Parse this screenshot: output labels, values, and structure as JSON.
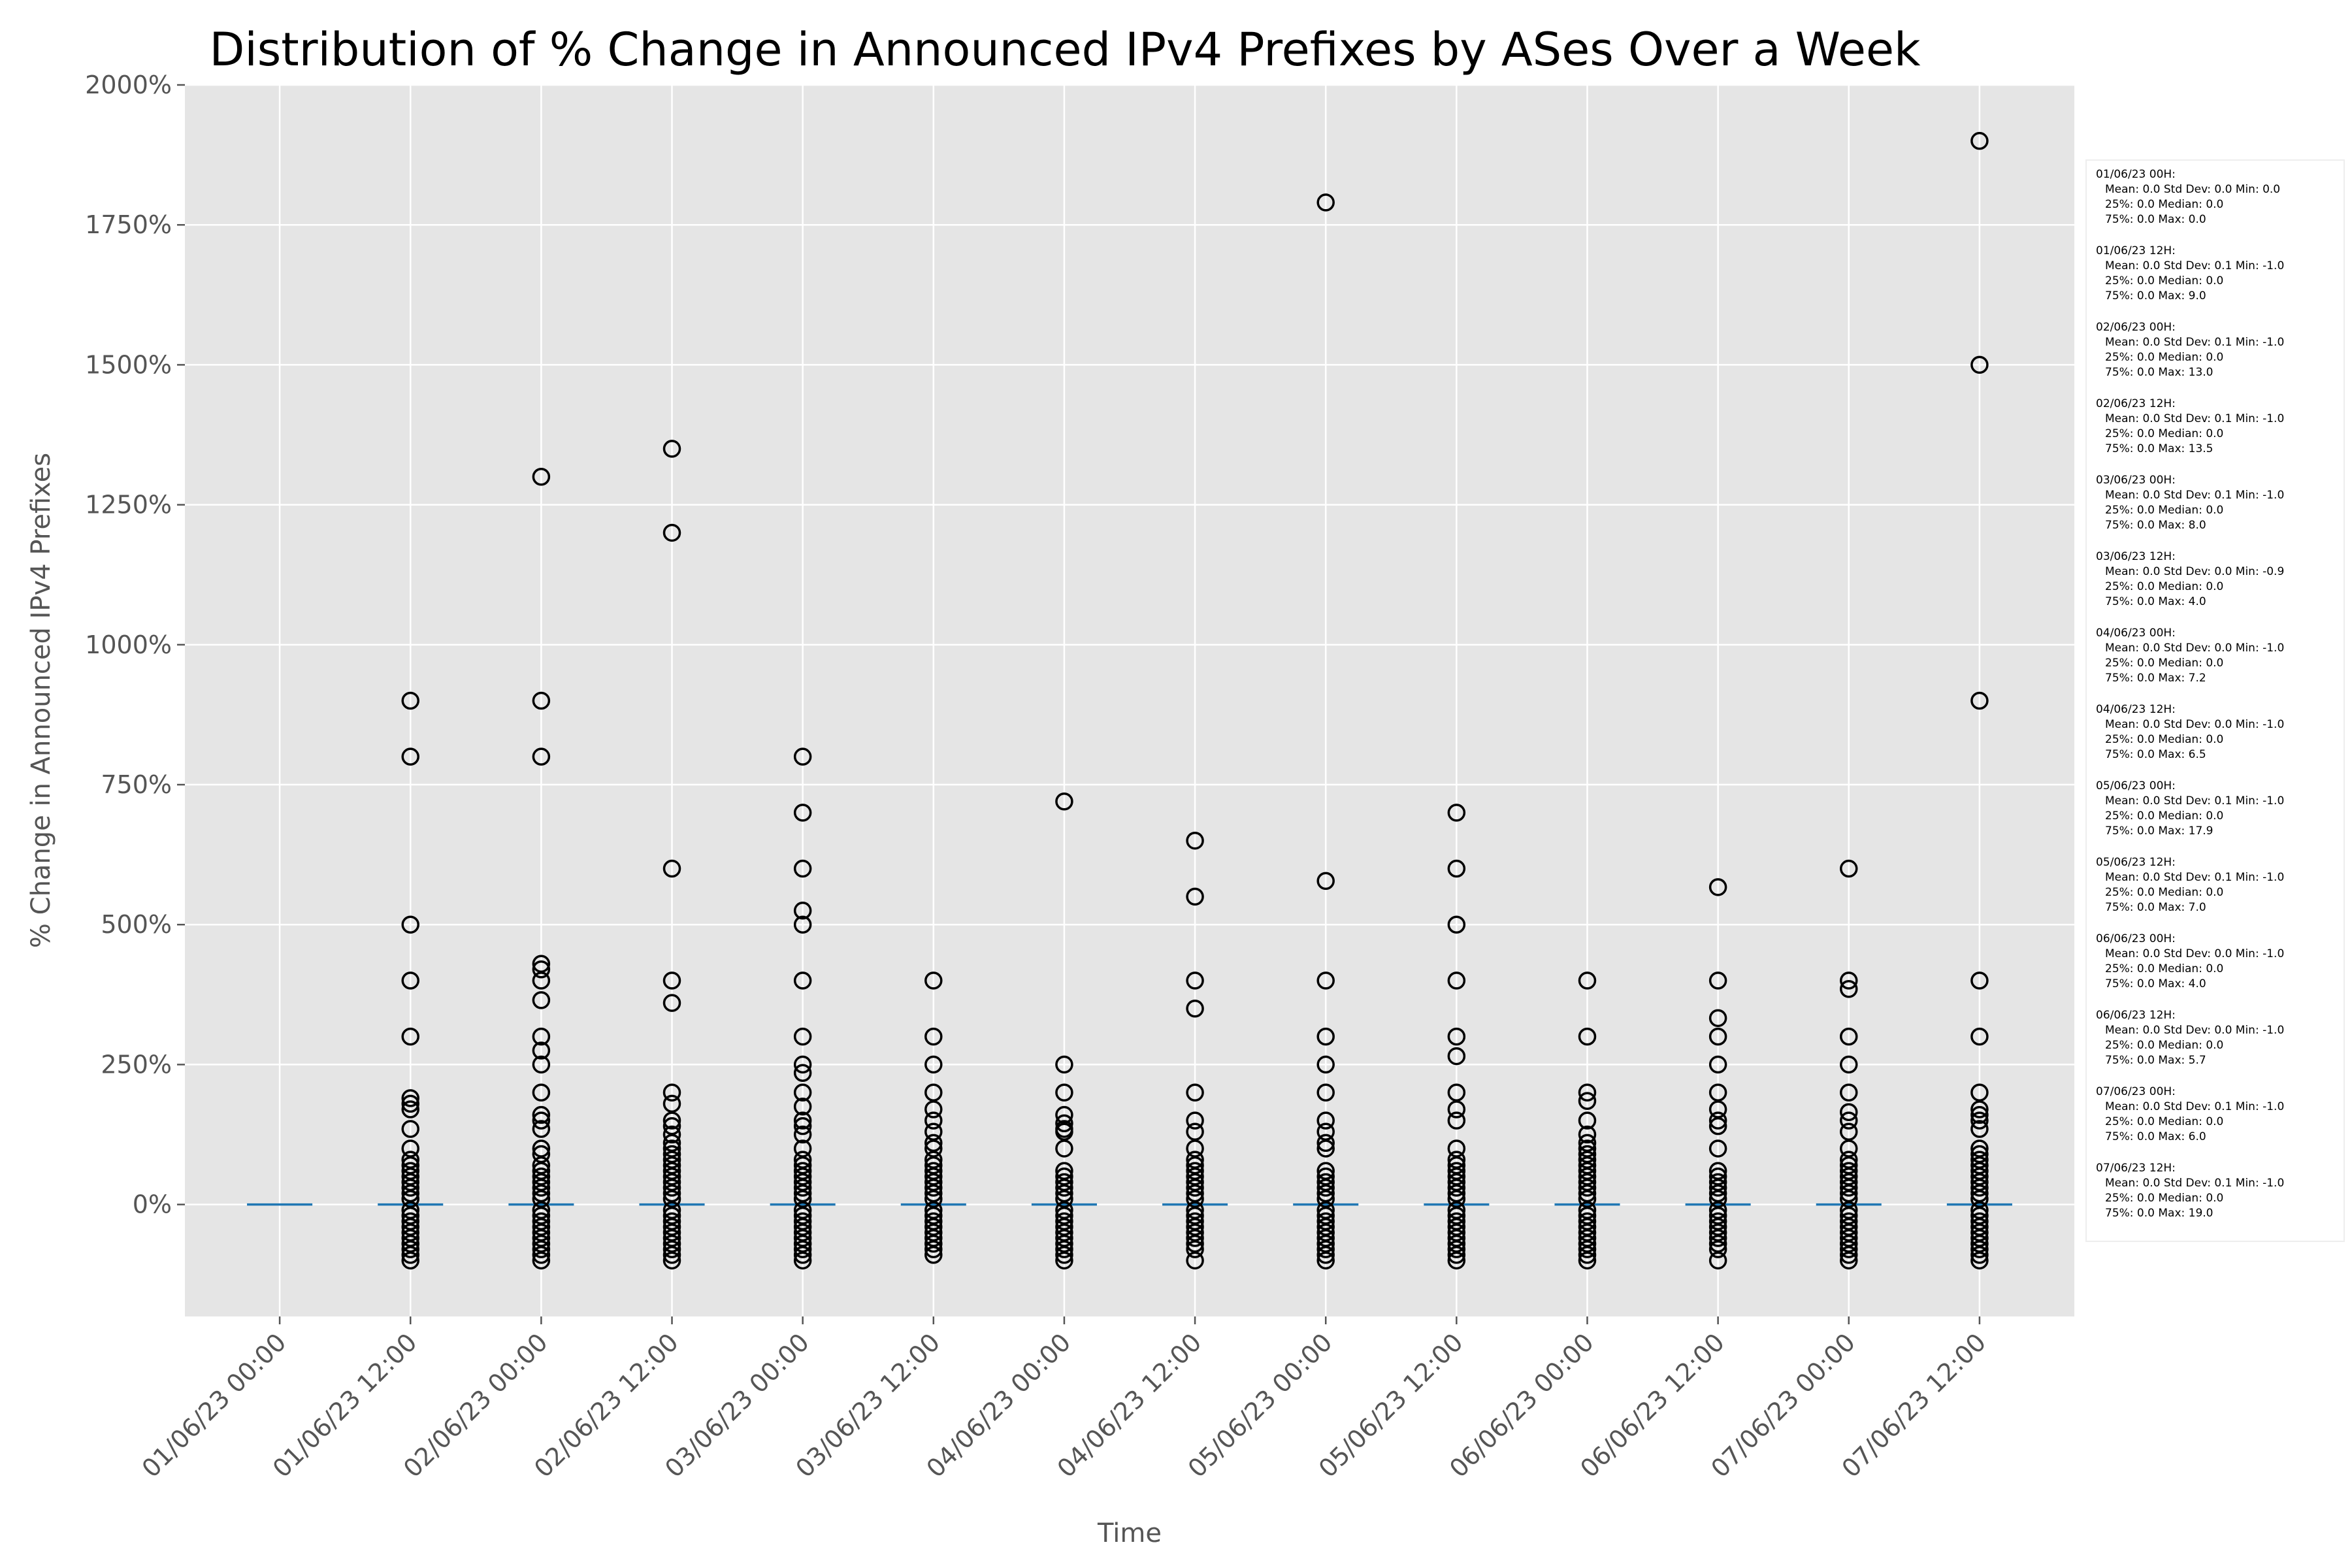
{
  "chart_data": {
    "type": "box",
    "title": "Distribution of % Change in Announced IPv4 Prefixes by ASes Over a Week",
    "xlabel": "Time",
    "ylabel": "% Change in Announced IPv4 Prefixes",
    "ylim": [
      -200,
      2000
    ],
    "y_ticks": [
      0,
      250,
      500,
      750,
      1000,
      1250,
      1500,
      1750,
      2000
    ],
    "y_tick_labels": [
      "0%",
      "250%",
      "500%",
      "750%",
      "1000%",
      "1250%",
      "1500%",
      "1750%",
      "2000%"
    ],
    "grid": true,
    "legend_position": "right",
    "colors": {
      "plot_bg": "#E5E5E5",
      "grid": "#FFFFFF",
      "median": "#1F77B4",
      "outlier": "#000000"
    },
    "categories": [
      "01/06/23 00:00",
      "01/06/23 12:00",
      "02/06/23 00:00",
      "02/06/23 12:00",
      "03/06/23 00:00",
      "03/06/23 12:00",
      "04/06/23 00:00",
      "04/06/23 12:00",
      "05/06/23 00:00",
      "05/06/23 12:00",
      "06/06/23 00:00",
      "06/06/23 12:00",
      "07/06/23 00:00",
      "07/06/23 12:00"
    ],
    "boxes": [
      {
        "q1": 0,
        "median": 0,
        "q3": 0,
        "outliers": []
      },
      {
        "q1": 0,
        "median": 0,
        "q3": 0,
        "outliers": [
          900,
          800,
          500,
          400,
          300,
          190,
          180,
          170,
          135,
          100,
          80,
          70,
          60,
          50,
          40,
          30,
          20,
          10,
          -10,
          -20,
          -30,
          -40,
          -50,
          -60,
          -70,
          -80,
          -90,
          -100
        ]
      },
      {
        "q1": 0,
        "median": 0,
        "q3": 0,
        "outliers": [
          1300,
          900,
          800,
          430,
          420,
          400,
          365,
          300,
          275,
          250,
          200,
          160,
          150,
          135,
          100,
          90,
          70,
          60,
          50,
          40,
          30,
          20,
          10,
          -10,
          -20,
          -30,
          -40,
          -50,
          -60,
          -70,
          -80,
          -90,
          -100
        ]
      },
      {
        "q1": 0,
        "median": 0,
        "q3": 0,
        "outliers": [
          1350,
          1200,
          600,
          400,
          360,
          200,
          180,
          150,
          140,
          125,
          110,
          100,
          90,
          80,
          70,
          60,
          50,
          40,
          30,
          20,
          10,
          -10,
          -20,
          -30,
          -40,
          -50,
          -60,
          -70,
          -80,
          -90,
          -100
        ]
      },
      {
        "q1": 0,
        "median": 0,
        "q3": 0,
        "outliers": [
          800,
          700,
          600,
          525,
          500,
          400,
          300,
          250,
          235,
          200,
          175,
          150,
          140,
          125,
          100,
          80,
          70,
          60,
          50,
          40,
          30,
          20,
          10,
          -10,
          -20,
          -30,
          -40,
          -50,
          -60,
          -70,
          -80,
          -90,
          -100
        ]
      },
      {
        "q1": 0,
        "median": 0,
        "q3": 0,
        "outliers": [
          400,
          300,
          250,
          200,
          170,
          150,
          130,
          110,
          100,
          80,
          70,
          60,
          50,
          40,
          30,
          20,
          10,
          -10,
          -20,
          -30,
          -40,
          -50,
          -60,
          -70,
          -80,
          -90
        ]
      },
      {
        "q1": 0,
        "median": 0,
        "q3": 0,
        "outliers": [
          720,
          250,
          200,
          160,
          145,
          135,
          130,
          100,
          60,
          50,
          40,
          30,
          20,
          10,
          -10,
          -20,
          -30,
          -40,
          -50,
          -60,
          -70,
          -80,
          -90,
          -100
        ]
      },
      {
        "q1": 0,
        "median": 0,
        "q3": 0,
        "outliers": [
          650,
          550,
          400,
          350,
          200,
          150,
          130,
          100,
          80,
          70,
          60,
          50,
          40,
          30,
          20,
          10,
          -10,
          -20,
          -30,
          -40,
          -50,
          -60,
          -70,
          -80,
          -100
        ]
      },
      {
        "q1": 0,
        "median": 0,
        "q3": 0,
        "outliers": [
          1790,
          578,
          400,
          300,
          250,
          200,
          150,
          130,
          110,
          100,
          60,
          50,
          40,
          30,
          20,
          10,
          -10,
          -20,
          -30,
          -40,
          -50,
          -60,
          -70,
          -80,
          -90,
          -100
        ]
      },
      {
        "q1": 0,
        "median": 0,
        "q3": 0,
        "outliers": [
          700,
          600,
          500,
          400,
          300,
          265,
          200,
          170,
          150,
          100,
          80,
          70,
          60,
          50,
          40,
          30,
          20,
          10,
          -10,
          -20,
          -30,
          -40,
          -50,
          -60,
          -70,
          -80,
          -90,
          -100
        ]
      },
      {
        "q1": 0,
        "median": 0,
        "q3": 0,
        "outliers": [
          400,
          300,
          200,
          185,
          150,
          125,
          110,
          100,
          90,
          80,
          70,
          60,
          50,
          40,
          30,
          20,
          10,
          -10,
          -20,
          -30,
          -40,
          -50,
          -60,
          -70,
          -80,
          -90,
          -100
        ]
      },
      {
        "q1": 0,
        "median": 0,
        "q3": 0,
        "outliers": [
          567,
          400,
          333,
          300,
          250,
          200,
          170,
          150,
          140,
          100,
          60,
          50,
          40,
          30,
          20,
          10,
          -10,
          -20,
          -30,
          -40,
          -50,
          -60,
          -70,
          -80,
          -100
        ]
      },
      {
        "q1": 0,
        "median": 0,
        "q3": 0,
        "outliers": [
          600,
          400,
          385,
          300,
          250,
          200,
          165,
          150,
          130,
          100,
          80,
          70,
          60,
          50,
          40,
          30,
          20,
          10,
          -10,
          -20,
          -30,
          -40,
          -50,
          -60,
          -70,
          -80,
          -90,
          -100
        ]
      },
      {
        "q1": 0,
        "median": 0,
        "q3": 0,
        "outliers": [
          1900,
          1500,
          900,
          400,
          300,
          200,
          170,
          160,
          150,
          135,
          100,
          90,
          80,
          70,
          60,
          50,
          40,
          30,
          20,
          10,
          -10,
          -20,
          -30,
          -40,
          -50,
          -60,
          -70,
          -80,
          -90,
          -100
        ]
      }
    ],
    "stats_box": [
      {
        "header": "01/06/23 00H:",
        "line1": "Mean: 0.0  Std Dev: 0.0  Min: 0.0",
        "line2": "25%: 0.0  Median: 0.0",
        "line3": "75%: 0.0  Max: 0.0"
      },
      {
        "header": "01/06/23 12H:",
        "line1": "Mean: 0.0  Std Dev: 0.1  Min: -1.0",
        "line2": "25%: 0.0  Median: 0.0",
        "line3": "75%: 0.0  Max: 9.0"
      },
      {
        "header": "02/06/23 00H:",
        "line1": "Mean: 0.0  Std Dev: 0.1  Min: -1.0",
        "line2": "25%: 0.0  Median: 0.0",
        "line3": "75%: 0.0  Max: 13.0"
      },
      {
        "header": "02/06/23 12H:",
        "line1": "Mean: 0.0  Std Dev: 0.1  Min: -1.0",
        "line2": "25%: 0.0  Median: 0.0",
        "line3": "75%: 0.0  Max: 13.5"
      },
      {
        "header": "03/06/23 00H:",
        "line1": "Mean: 0.0  Std Dev: 0.1  Min: -1.0",
        "line2": "25%: 0.0  Median: 0.0",
        "line3": "75%: 0.0  Max: 8.0"
      },
      {
        "header": "03/06/23 12H:",
        "line1": "Mean: 0.0  Std Dev: 0.0  Min: -0.9",
        "line2": "25%: 0.0  Median: 0.0",
        "line3": "75%: 0.0  Max: 4.0"
      },
      {
        "header": "04/06/23 00H:",
        "line1": "Mean: 0.0  Std Dev: 0.0  Min: -1.0",
        "line2": "25%: 0.0  Median: 0.0",
        "line3": "75%: 0.0  Max: 7.2"
      },
      {
        "header": "04/06/23 12H:",
        "line1": "Mean: 0.0  Std Dev: 0.0  Min: -1.0",
        "line2": "25%: 0.0  Median: 0.0",
        "line3": "75%: 0.0  Max: 6.5"
      },
      {
        "header": "05/06/23 00H:",
        "line1": "Mean: 0.0  Std Dev: 0.1  Min: -1.0",
        "line2": "25%: 0.0  Median: 0.0",
        "line3": "75%: 0.0  Max: 17.9"
      },
      {
        "header": "05/06/23 12H:",
        "line1": "Mean: 0.0  Std Dev: 0.1  Min: -1.0",
        "line2": "25%: 0.0  Median: 0.0",
        "line3": "75%: 0.0  Max: 7.0"
      },
      {
        "header": "06/06/23 00H:",
        "line1": "Mean: 0.0  Std Dev: 0.0  Min: -1.0",
        "line2": "25%: 0.0  Median: 0.0",
        "line3": "75%: 0.0  Max: 4.0"
      },
      {
        "header": "06/06/23 12H:",
        "line1": "Mean: 0.0  Std Dev: 0.0  Min: -1.0",
        "line2": "25%: 0.0  Median: 0.0",
        "line3": "75%: 0.0  Max: 5.7"
      },
      {
        "header": "07/06/23 00H:",
        "line1": "Mean: 0.0  Std Dev: 0.1  Min: -1.0",
        "line2": "25%: 0.0  Median: 0.0",
        "line3": "75%: 0.0  Max: 6.0"
      },
      {
        "header": "07/06/23 12H:",
        "line1": "Mean: 0.0  Std Dev: 0.1  Min: -1.0",
        "line2": "25%: 0.0  Median: 0.0",
        "line3": "75%: 0.0  Max: 19.0"
      }
    ]
  }
}
